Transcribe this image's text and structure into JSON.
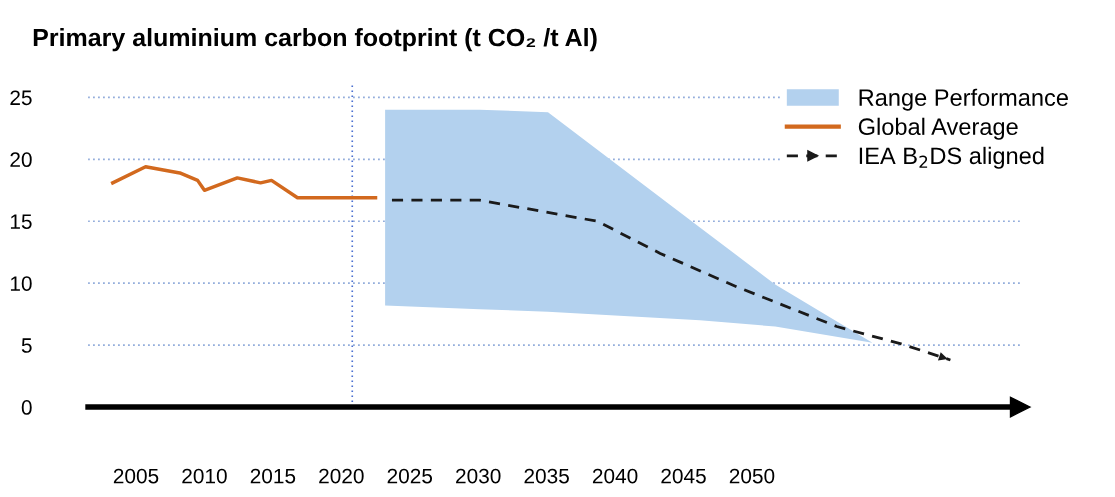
{
  "chart_data": {
    "type": "line",
    "title": "Primary aluminium carbon footprint (t CO₂ /t Al)",
    "xlim": [
      2001.5,
      2069.6
    ],
    "xticks": [
      2005,
      2010,
      2015,
      2020,
      2025,
      2030,
      2035,
      2040,
      2045,
      2050
    ],
    "ylim": [
      0,
      26
    ],
    "yticks": [
      0,
      5,
      10,
      15,
      20,
      25
    ],
    "grid": "y",
    "legend": "top right",
    "series": [
      {
        "name": "Range Performance",
        "type": "area",
        "color": "#b3d1ee",
        "x": [
          2023.2,
          2030.1,
          2035.1,
          2046.2,
          2051.7,
          2058.8
        ],
        "values": [
          null,
          null,
          null,
          null,
          null,
          null
        ],
        "upper": [
          24.0,
          24.0,
          23.8,
          14.5,
          9.9,
          5.2
        ],
        "lower": [
          8.2,
          7.9,
          7.7,
          7.0,
          6.5,
          5.2
        ]
      },
      {
        "name": "Global Average",
        "color": "#d2691e",
        "line_style": "solid",
        "x": [
          2003.3,
          2005.7,
          2008.2,
          2009.5,
          2010.0,
          2012.4,
          2014.1,
          2014.9,
          2016.8,
          2022.5
        ],
        "values": [
          18.1,
          19.4,
          18.9,
          18.3,
          17.5,
          18.5,
          18.1,
          18.3,
          16.9,
          16.9
        ]
      },
      {
        "name": "IEA B$_{2}$DS aligned",
        "color": "#1a1a1a",
        "line_style": "dashed",
        "x": [
          2023.7,
          2030.1,
          2038.7,
          2043.3,
          2048.9,
          2056.2,
          2060.9,
          2064.5
        ],
        "values": [
          16.7,
          16.7,
          15.0,
          12.4,
          9.7,
          6.5,
          5.1,
          3.8
        ]
      }
    ],
    "ref_lines": [
      {
        "axis": "x",
        "value": 2020.8,
        "color": "#4a6fd0",
        "line_style": "dotted"
      }
    ]
  }
}
